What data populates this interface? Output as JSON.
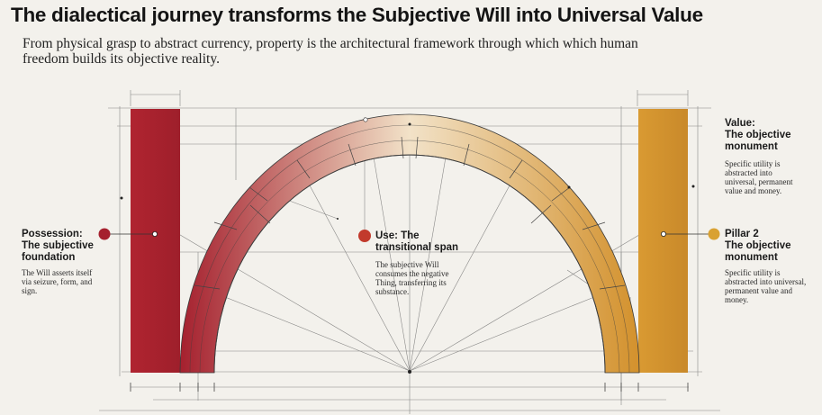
{
  "title": "The dialectical journey transforms the Subjective Will into Universal Value",
  "subtitle": "From physical grasp to abstract currency, property is the architectural framework through which which human freedom builds its objective reality.",
  "colors": {
    "pillar_left": "#b02430",
    "pillar_right": "#d99a32",
    "arch_start": "#a5202e",
    "arch_mid": "#f2e2c8",
    "arch_end": "#d3912c",
    "background": "#f3f1ec",
    "line": "#555555"
  },
  "nodes": {
    "possession": {
      "heading": "Possession:\nThe subjective\nfoundation",
      "body": "The Will asserts itself via seizure, form, and sign.",
      "marker_color": "#a5202e"
    },
    "use": {
      "heading": "Use: The\ntransitional span",
      "body": "The subjective Will consumes the negative Thing, transferring its substance.",
      "marker_color": "#c23a2c"
    },
    "value_top": {
      "heading": "Value:\nThe objective\nmonument",
      "body": "Specific utility is abstracted into universal, permanent value and money."
    },
    "pillar2": {
      "heading": "Pillar 2\nThe objective\nmonument",
      "body": "Specific utility is abstracted into universal, permanent value and money.",
      "marker_color": "#d9a132"
    }
  }
}
